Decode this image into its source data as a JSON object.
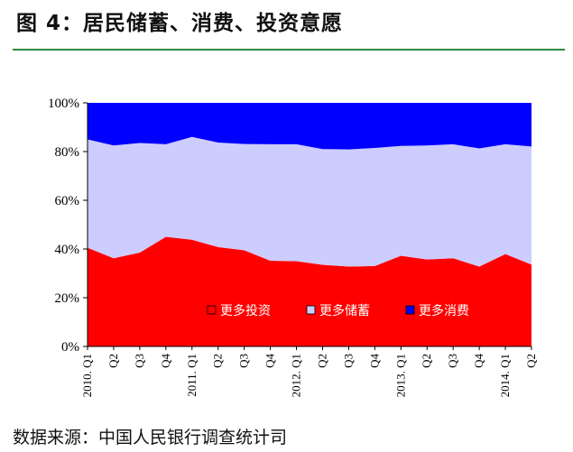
{
  "header": {
    "title": "图 4：居民储蓄、消费、投资意愿"
  },
  "footer": {
    "source": "数据来源：中国人民银行调查统计司"
  },
  "chart_data": {
    "type": "area",
    "stacked": true,
    "categories": [
      "2010. Q1",
      "Q2",
      "Q3",
      "Q4",
      "2011. Q1",
      "Q2",
      "Q3",
      "Q4",
      "2012. Q1",
      "Q2",
      "Q3",
      "Q4",
      "2013. Q1",
      "Q2",
      "Q3",
      "Q4",
      "2014. Q1",
      "Q2"
    ],
    "series": [
      {
        "name": "更多投资",
        "color": "#ff0000",
        "values": [
          40.5,
          36.2,
          38.5,
          45.0,
          43.8,
          40.8,
          39.5,
          35.2,
          35.0,
          33.5,
          32.8,
          33.0,
          37.2,
          35.7,
          36.2,
          32.8,
          37.9,
          33.6
        ]
      },
      {
        "name": "更多储蓄",
        "color": "#ccccff",
        "values": [
          44.5,
          46.3,
          45.0,
          38.0,
          42.2,
          42.9,
          43.6,
          47.8,
          48.0,
          47.5,
          48.1,
          48.5,
          45.1,
          46.8,
          46.8,
          48.5,
          45.1,
          48.5
        ]
      },
      {
        "name": "更多消费",
        "color": "#0000ff",
        "values": [
          15.0,
          17.5,
          16.5,
          17.0,
          14.0,
          16.3,
          16.9,
          17.0,
          17.0,
          19.0,
          19.1,
          18.5,
          17.7,
          17.5,
          17.0,
          18.7,
          17.0,
          17.9
        ]
      }
    ],
    "ylim": [
      0,
      100
    ],
    "yticks": [
      "0%",
      "20%",
      "40%",
      "60%",
      "80%",
      "100%"
    ],
    "legend": "inside-bottom",
    "grid": false
  }
}
